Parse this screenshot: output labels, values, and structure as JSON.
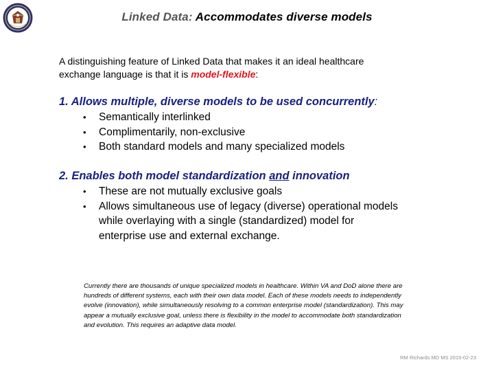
{
  "title": {
    "part1": "Linked Data:",
    "part2": "Accommodates diverse models"
  },
  "intro": {
    "line1": "A distinguishing feature of Linked Data that makes it an ideal healthcare",
    "line2_prefix": "exchange language is that it is",
    "highlight": "model-flexible",
    "line2_suffix": ":"
  },
  "section1": {
    "heading": "1. Allows multiple, diverse models to be used concurrently",
    "heading_suffix": ":",
    "bullets": [
      "Semantically interlinked",
      "Complimentarily, non-exclusive",
      "Both  standard models and many specialized models"
    ]
  },
  "section2": {
    "heading_pre": "2. Enables both model standardization",
    "heading_underlined": "and",
    "heading_post": "innovation",
    "bullets": [
      "These are not mutually exclusive goals",
      "Allows simultaneous use of legacy (diverse) operational models while overlaying with a single (standardized) model for enterprise use and external exchange."
    ]
  },
  "footnote": "Currently there are thousands of unique specialized models in healthcare. Within VA and DoD alone there are hundreds of different systems, each with their own data model.  Each of these models needs to independently evolve (innovation), while simultaneously resolving to a common enterprise model (standardization).   This may appear a mutually exclusive goal, unless there is flexibility in the model to accommodate both standardization and evolution. This requires an adaptive data model.",
  "footer": "RM Richards MD MS  2015-02-23",
  "colors": {
    "heading": "#1a2180",
    "highlight": "#e0141e",
    "title_prefix": "#555555"
  },
  "icons": {
    "seal": "department-seal-icon",
    "bullet": "bullet-dot-icon"
  }
}
